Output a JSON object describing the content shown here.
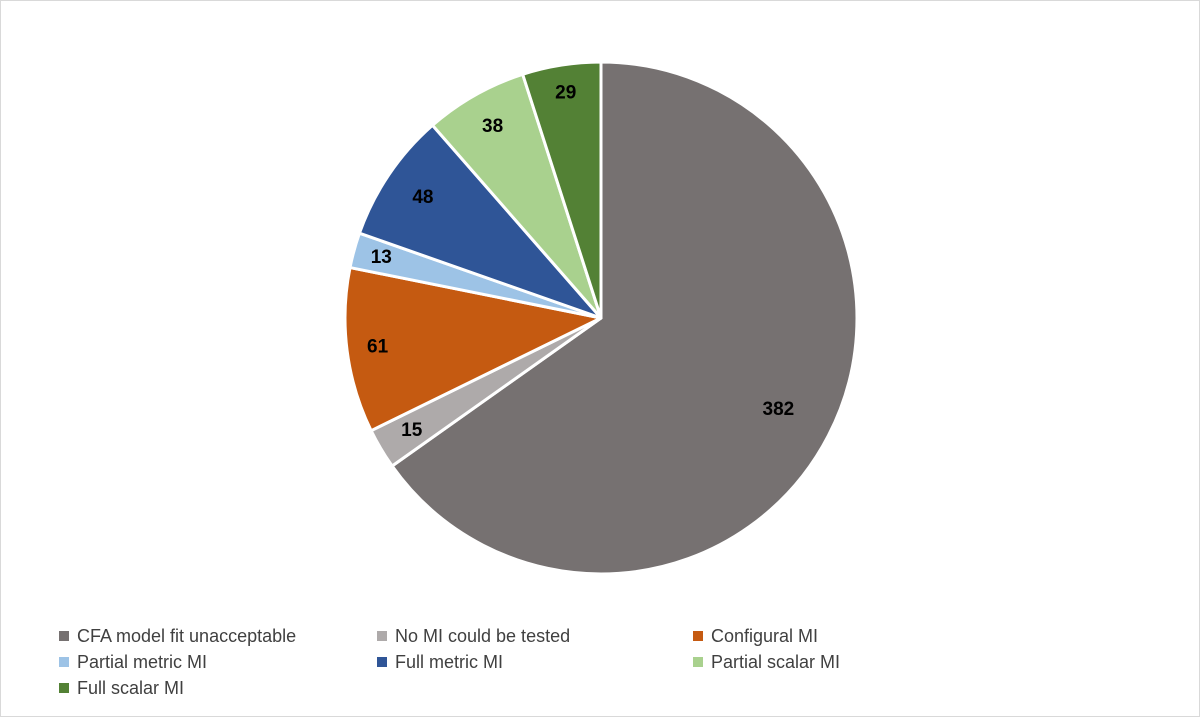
{
  "chart_data": {
    "type": "pie",
    "title": "",
    "categories": [
      "CFA model fit unacceptable",
      "No MI could be tested",
      "Configural MI",
      "Partial metric MI",
      "Full metric MI",
      "Partial scalar MI",
      "Full scalar MI"
    ],
    "values": [
      382,
      15,
      61,
      13,
      48,
      38,
      29
    ],
    "data_labels": [
      "382",
      "15",
      "61",
      "13",
      "48",
      "38",
      "29"
    ],
    "colors": [
      "#767171",
      "#aeaaaa",
      "#c55a11",
      "#9dc3e6",
      "#2f5597",
      "#a9d18e",
      "#538135"
    ],
    "legend_position": "bottom",
    "start_angle": "12 o'clock, clockwise"
  }
}
